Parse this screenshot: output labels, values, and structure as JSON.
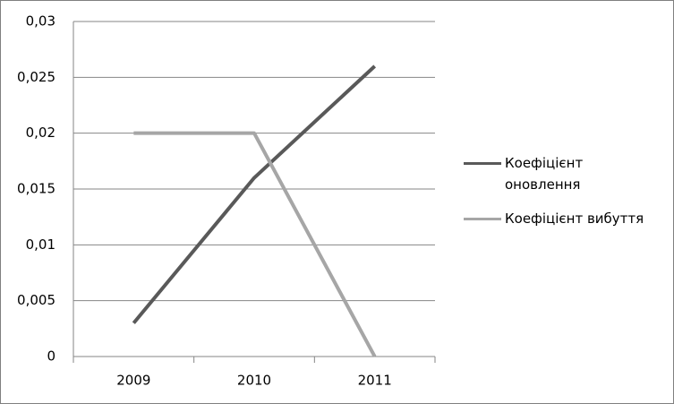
{
  "chart_data": {
    "type": "line",
    "categories": [
      "2009",
      "2010",
      "2011"
    ],
    "series": [
      {
        "name": "Коефіцієнт оновлення",
        "color": "#595959",
        "values": [
          0.003,
          0.016,
          0.026
        ]
      },
      {
        "name": "Коефіцієнт вибуття",
        "color": "#a6a6a6",
        "values": [
          0.02,
          0.02,
          0
        ]
      }
    ],
    "ylim": [
      0,
      0.03
    ],
    "yticks": [
      0,
      {
        "value": 0.005,
        "label": "0,005"
      },
      {
        "value": 0.01,
        "label": "0,01"
      },
      {
        "value": 0.015,
        "label": "0,015"
      },
      {
        "value": 0.02,
        "label": "0,02"
      },
      {
        "value": 0.025,
        "label": "0,025"
      },
      {
        "value": 0.03,
        "label": "0,03"
      }
    ],
    "grid": true,
    "legend": "right"
  }
}
